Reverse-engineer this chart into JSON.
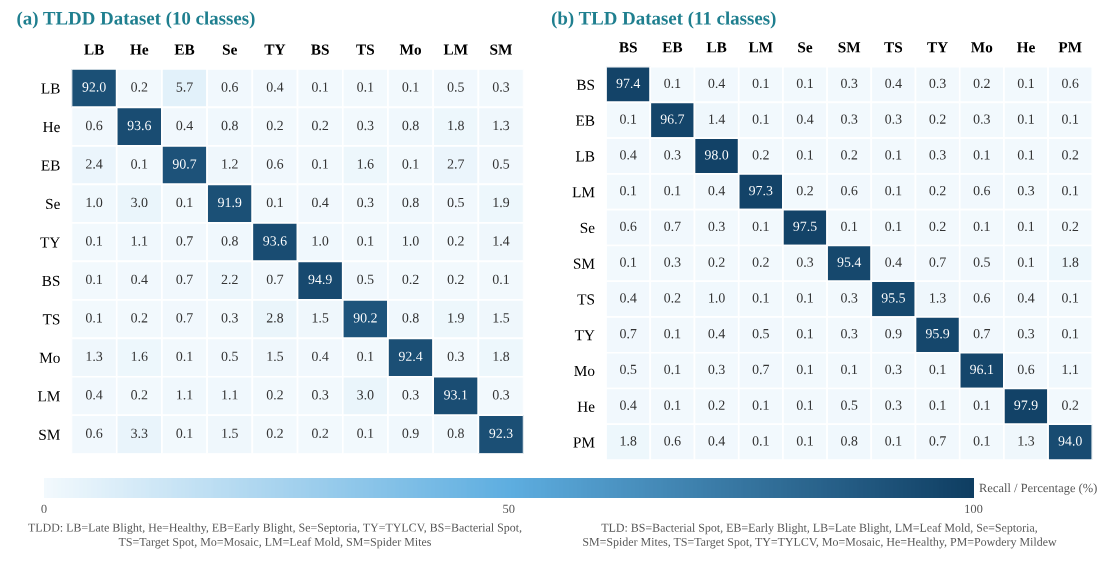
{
  "chart_data": [
    {
      "type": "heatmap",
      "title": "(a) TLDD Dataset (10 classes)",
      "categories": [
        "LB",
        "He",
        "EB",
        "Se",
        "TY",
        "BS",
        "TS",
        "Mo",
        "LM",
        "SM"
      ],
      "y_categories": [
        "LB",
        "He",
        "EB",
        "Se",
        "TY",
        "BS",
        "TS",
        "Mo",
        "LM",
        "SM"
      ],
      "cells": [
        [
          92.0,
          0.2,
          5.7,
          0.6,
          0.4,
          0.1,
          0.1,
          0.1,
          0.5,
          0.3
        ],
        [
          0.6,
          93.6,
          0.4,
          0.8,
          0.2,
          0.2,
          0.3,
          0.8,
          1.8,
          1.3
        ],
        [
          2.4,
          0.1,
          90.7,
          1.2,
          0.6,
          0.1,
          1.6,
          0.1,
          2.7,
          0.5
        ],
        [
          1.0,
          3.0,
          0.1,
          91.9,
          0.1,
          0.4,
          0.3,
          0.8,
          0.5,
          1.9
        ],
        [
          0.1,
          1.1,
          0.7,
          0.8,
          93.6,
          1.0,
          0.1,
          1.0,
          0.2,
          1.4
        ],
        [
          0.1,
          0.4,
          0.7,
          2.2,
          0.7,
          94.9,
          0.5,
          0.2,
          0.2,
          0.1
        ],
        [
          0.1,
          0.2,
          0.7,
          0.3,
          2.8,
          1.5,
          90.2,
          0.8,
          1.9,
          1.5
        ],
        [
          1.3,
          1.6,
          0.1,
          0.5,
          1.5,
          0.4,
          0.1,
          92.4,
          0.3,
          1.8
        ],
        [
          0.4,
          0.2,
          1.1,
          1.1,
          0.2,
          0.3,
          3.0,
          0.3,
          93.1,
          0.3
        ],
        [
          0.6,
          3.3,
          0.1,
          1.5,
          0.2,
          0.2,
          0.1,
          0.9,
          0.8,
          92.3
        ]
      ],
      "cell_labels": [
        [
          "92.0",
          "0.2",
          "5.7",
          "0.6",
          "0.4",
          "0.1",
          "0.1",
          "0.1",
          "0.5",
          "0.3"
        ],
        [
          "0.6",
          "93.6",
          "0.4",
          "0.8",
          "0.2",
          "0.2",
          "0.3",
          "0.8",
          "1.8",
          "1.3"
        ],
        [
          "2.4",
          "0.1",
          "90.7",
          "1.2",
          "0.6",
          "0.1",
          "1.6",
          "0.1",
          "2.7",
          "0.5"
        ],
        [
          "1.0",
          "3.0",
          "0.1",
          "91.9",
          "0.1",
          "0.4",
          "0.3",
          "0.8",
          "0.5",
          "1.9"
        ],
        [
          "0.1",
          "1.1",
          "0.7",
          "0.8",
          "93.6",
          "1.0",
          "0.1",
          "1.0",
          "0.2",
          "1.4"
        ],
        [
          "0.1",
          "0.4",
          "0.7",
          "2.2",
          "0.7",
          "94.9",
          "0.5",
          "0.2",
          "0.2",
          "0.1"
        ],
        [
          "0.1",
          "0.2",
          "0.7",
          "0.3",
          "2.8",
          "1.5",
          "90.2",
          "0.8",
          "1.9",
          "1.5"
        ],
        [
          "1.3",
          "1.6",
          "0.1",
          "0.5",
          "1.5",
          "0.4",
          "0.1",
          "92.4",
          "0.3",
          "1.8"
        ],
        [
          "0.4",
          "0.2",
          "1.1",
          "1.1",
          "0.2",
          "0.3",
          "3.0",
          "0.3",
          "93.1",
          "0.3"
        ],
        [
          "0.6",
          "3.3",
          "0.1",
          "1.5",
          "0.2",
          "0.2",
          "0.1",
          "0.9",
          "0.8",
          "92.3"
        ]
      ],
      "annotations": [
        "TLDD: LB=Late Blight, He=Healthy, EB=Early Blight, Se=Septoria, TY=TYLCV, BS=Bacterial Spot,\nTS=Target Spot, Mo=Mosaic, LM=Leaf Mold, SM=Spider Mites"
      ]
    },
    {
      "type": "heatmap",
      "title": "(b) TLD Dataset (11 classes)",
      "categories": [
        "BS",
        "EB",
        "LB",
        "LM",
        "Se",
        "SM",
        "TS",
        "TY",
        "Mo",
        "He",
        "PM"
      ],
      "y_categories": [
        "BS",
        "EB",
        "LB",
        "LM",
        "Se",
        "SM",
        "TS",
        "TY",
        "Mo",
        "He",
        "PM"
      ],
      "cells": [
        [
          97.4,
          0.1,
          0.4,
          0.1,
          0.1,
          0.3,
          0.4,
          0.3,
          0.2,
          0.1,
          0.6
        ],
        [
          0.1,
          96.7,
          1.4,
          0.1,
          0.4,
          0.3,
          0.3,
          0.2,
          0.3,
          0.1,
          0.1
        ],
        [
          0.4,
          0.3,
          98.0,
          0.2,
          0.1,
          0.2,
          0.1,
          0.3,
          0.1,
          0.1,
          0.2
        ],
        [
          0.1,
          0.1,
          0.4,
          97.3,
          0.2,
          0.6,
          0.1,
          0.2,
          0.6,
          0.3,
          0.1
        ],
        [
          0.6,
          0.7,
          0.3,
          0.1,
          97.5,
          0.1,
          0.1,
          0.2,
          0.1,
          0.1,
          0.2
        ],
        [
          0.1,
          0.3,
          0.2,
          0.2,
          0.3,
          95.4,
          0.4,
          0.7,
          0.5,
          0.1,
          1.8
        ],
        [
          0.4,
          0.2,
          1.0,
          0.1,
          0.1,
          0.3,
          95.5,
          1.3,
          0.6,
          0.4,
          0.1
        ],
        [
          0.7,
          0.1,
          0.4,
          0.5,
          0.1,
          0.3,
          0.9,
          95.9,
          0.7,
          0.3,
          0.1
        ],
        [
          0.5,
          0.1,
          0.3,
          0.7,
          0.1,
          0.1,
          0.3,
          0.1,
          96.1,
          0.6,
          1.1
        ],
        [
          0.4,
          0.1,
          0.2,
          0.1,
          0.1,
          0.5,
          0.3,
          0.1,
          0.1,
          97.9,
          0.2
        ],
        [
          1.8,
          0.6,
          0.4,
          0.1,
          0.1,
          0.8,
          0.1,
          0.7,
          0.1,
          1.3,
          94.0
        ]
      ],
      "cell_labels": [
        [
          "97.4",
          "0.1",
          "0.4",
          "0.1",
          "0.1",
          "0.3",
          "0.4",
          "0.3",
          "0.2",
          "0.1",
          "0.6"
        ],
        [
          "0.1",
          "96.7",
          "1.4",
          "0.1",
          "0.4",
          "0.3",
          "0.3",
          "0.2",
          "0.3",
          "0.1",
          "0.1"
        ],
        [
          "0.4",
          "0.3",
          "98.0",
          "0.2",
          "0.1",
          "0.2",
          "0.1",
          "0.3",
          "0.1",
          "0.1",
          "0.2"
        ],
        [
          "0.1",
          "0.1",
          "0.4",
          "97.3",
          "0.2",
          "0.6",
          "0.1",
          "0.2",
          "0.6",
          "0.3",
          "0.1"
        ],
        [
          "0.6",
          "0.7",
          "0.3",
          "0.1",
          "97.5",
          "0.1",
          "0.1",
          "0.2",
          "0.1",
          "0.1",
          "0.2"
        ],
        [
          "0.1",
          "0.3",
          "0.2",
          "0.2",
          "0.3",
          "95.4",
          "0.4",
          "0.7",
          "0.5",
          "0.1",
          "1.8"
        ],
        [
          "0.4",
          "0.2",
          "1.0",
          "0.1",
          "0.1",
          "0.3",
          "95.5",
          "1.3",
          "0.6",
          "0.4",
          "0.1"
        ],
        [
          "0.7",
          "0.1",
          "0.4",
          "0.5",
          "0.1",
          "0.3",
          "0.9",
          "95.9",
          "0.7",
          "0.3",
          "0.1"
        ],
        [
          "0.5",
          "0.1",
          "0.3",
          "0.7",
          "0.1",
          "0.1",
          "0.3",
          "0.1",
          "96.1",
          "0.6",
          "1.1"
        ],
        [
          "0.4",
          "0.1",
          "0.2",
          "0.1",
          "0.1",
          "0.5",
          "0.3",
          "0.1",
          "0.1",
          "97.9",
          "0.2"
        ],
        [
          "1.8",
          "0.6",
          "0.4",
          "0.1",
          "0.1",
          "0.8",
          "0.1",
          "0.7",
          "0.1",
          "1.3",
          "94.0"
        ]
      ],
      "clim": [
        0,
        100
      ],
      "cticks": [
        0,
        50,
        100
      ],
      "clabel": "Recall / Percentage (%)",
      "annotations": [
        "TLD: BS=Bacterial Spot, EB=Early Blight, LB=Late Blight, LM=Leaf Mold, Se=Septoria,\nSM=Spider Mites, TS=Target Spot, TY=TYLCV, Mo=Mosaic, He=Healthy, PM=Powdery Mildew"
      ]
    }
  ]
}
